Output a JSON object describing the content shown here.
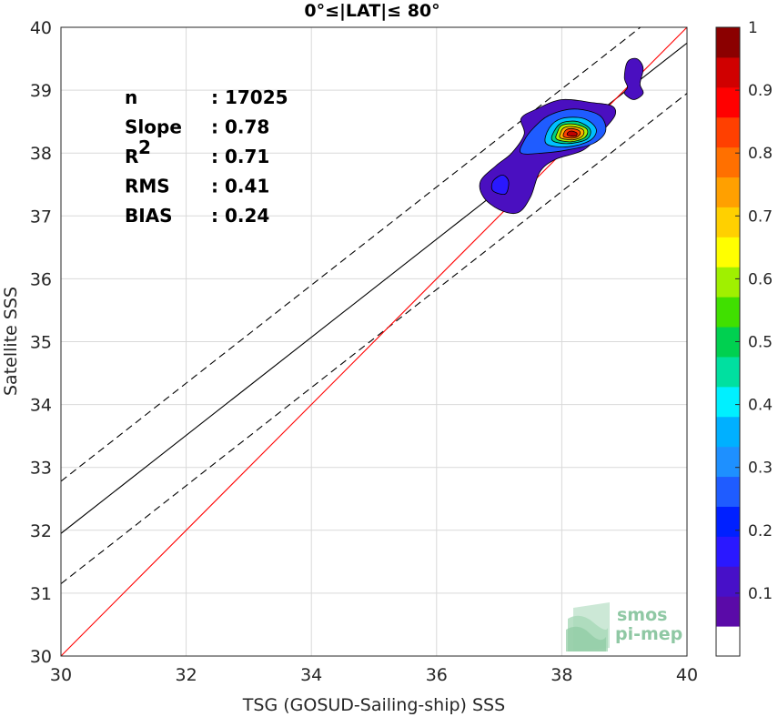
{
  "chart_data": {
    "type": "scatter",
    "title": "0°≤|LAT|≤ 80°",
    "xlabel": "TSG (GOSUD-Sailing-ship) SSS",
    "ylabel": "Satellite SSS",
    "xlim": [
      30,
      40
    ],
    "ylim": [
      30,
      40
    ],
    "xticks": [
      "30",
      "32",
      "34",
      "36",
      "38",
      "40"
    ],
    "yticks": [
      "30",
      "31",
      "32",
      "33",
      "34",
      "35",
      "36",
      "37",
      "38",
      "39",
      "40"
    ],
    "grid": true,
    "stats": [
      {
        "label": "n",
        "value": ": 17025"
      },
      {
        "label": "Slope",
        "value": ": 0.78"
      },
      {
        "label": "R",
        "sup": "2",
        "value": ": 0.71"
      },
      {
        "label": "RMS",
        "value": ": 0.41"
      },
      {
        "label": "BIAS",
        "value": ": 0.24"
      }
    ],
    "identity_line": {
      "from": [
        30,
        30
      ],
      "to": [
        40,
        40
      ],
      "color": "#ff0000"
    },
    "regression_line": {
      "from": [
        30,
        31.95
      ],
      "to": [
        40,
        39.75
      ],
      "color": "#000000"
    },
    "upper_bound_line": {
      "from": [
        30,
        32.78
      ],
      "to": [
        40,
        40.58
      ],
      "color": "#000000"
    },
    "lower_bound_line": {
      "from": [
        30,
        31.15
      ],
      "to": [
        40,
        38.95
      ],
      "color": "#000000"
    },
    "density_contours": [
      {
        "level": 0.05,
        "color": "#4a0fc0",
        "points": [
          [
            36.75,
            37.3
          ],
          [
            37.0,
            37.1
          ],
          [
            37.3,
            37.05
          ],
          [
            37.5,
            37.3
          ],
          [
            37.65,
            37.7
          ],
          [
            37.9,
            37.9
          ],
          [
            38.35,
            38.05
          ],
          [
            38.65,
            38.35
          ],
          [
            38.85,
            38.6
          ],
          [
            38.8,
            38.75
          ],
          [
            38.5,
            38.8
          ],
          [
            38.0,
            38.85
          ],
          [
            37.6,
            38.7
          ],
          [
            37.35,
            38.55
          ],
          [
            37.4,
            38.3
          ],
          [
            37.2,
            38.0
          ],
          [
            36.95,
            37.8
          ],
          [
            36.7,
            37.55
          ]
        ]
      },
      {
        "level": 0.05,
        "color": "#4a0fc0",
        "points": [
          [
            39.0,
            39.2
          ],
          [
            39.05,
            39.45
          ],
          [
            39.2,
            39.5
          ],
          [
            39.3,
            39.35
          ],
          [
            39.25,
            39.1
          ],
          [
            39.3,
            38.95
          ],
          [
            39.15,
            38.85
          ],
          [
            39.0,
            38.95
          ],
          [
            39.05,
            39.05
          ]
        ]
      },
      {
        "level": 0.1,
        "color": "#2a18ff",
        "points": [
          [
            36.9,
            37.4
          ],
          [
            37.1,
            37.35
          ],
          [
            37.15,
            37.55
          ],
          [
            37.05,
            37.65
          ],
          [
            36.9,
            37.55
          ]
        ]
      },
      {
        "level": 0.2,
        "color": "#1f5cff",
        "points": [
          [
            37.35,
            38.0
          ],
          [
            37.7,
            38.0
          ],
          [
            38.1,
            38.05
          ],
          [
            38.5,
            38.15
          ],
          [
            38.7,
            38.35
          ],
          [
            38.6,
            38.6
          ],
          [
            38.2,
            38.7
          ],
          [
            37.8,
            38.6
          ],
          [
            37.55,
            38.4
          ],
          [
            37.4,
            38.2
          ]
        ]
      },
      {
        "level": 0.4,
        "color": "#00c0ff",
        "points": [
          [
            37.75,
            38.15
          ],
          [
            38.1,
            38.1
          ],
          [
            38.45,
            38.2
          ],
          [
            38.55,
            38.38
          ],
          [
            38.35,
            38.55
          ],
          [
            38.0,
            38.55
          ],
          [
            37.8,
            38.4
          ]
        ]
      },
      {
        "level": 0.5,
        "color": "#00d080",
        "points": [
          [
            37.85,
            38.2
          ],
          [
            38.1,
            38.15
          ],
          [
            38.4,
            38.22
          ],
          [
            38.45,
            38.38
          ],
          [
            38.25,
            38.5
          ],
          [
            38.0,
            38.48
          ],
          [
            37.88,
            38.35
          ]
        ]
      },
      {
        "level": 0.6,
        "color": "#b0f000",
        "points": [
          [
            37.92,
            38.22
          ],
          [
            38.15,
            38.18
          ],
          [
            38.37,
            38.25
          ],
          [
            38.4,
            38.38
          ],
          [
            38.2,
            38.46
          ],
          [
            38.0,
            38.44
          ],
          [
            37.93,
            38.33
          ]
        ]
      },
      {
        "level": 0.7,
        "color": "#ffb000",
        "points": [
          [
            37.98,
            38.24
          ],
          [
            38.18,
            38.21
          ],
          [
            38.33,
            38.27
          ],
          [
            38.34,
            38.37
          ],
          [
            38.18,
            38.42
          ],
          [
            38.03,
            38.4
          ],
          [
            37.98,
            38.32
          ]
        ]
      },
      {
        "level": 0.85,
        "color": "#ff4000",
        "points": [
          [
            38.03,
            38.26
          ],
          [
            38.2,
            38.24
          ],
          [
            38.29,
            38.3
          ],
          [
            38.27,
            38.36
          ],
          [
            38.15,
            38.39
          ],
          [
            38.06,
            38.36
          ]
        ]
      },
      {
        "level": 1.0,
        "color": "#c00000",
        "points": [
          [
            38.1,
            38.28
          ],
          [
            38.22,
            38.27
          ],
          [
            38.24,
            38.32
          ],
          [
            38.15,
            38.35
          ],
          [
            38.09,
            38.32
          ]
        ]
      }
    ],
    "colorbar": {
      "ticks": [
        "0.1",
        "0.2",
        "0.3",
        "0.4",
        "0.5",
        "0.6",
        "0.7",
        "0.8",
        "0.9",
        "1"
      ],
      "tick_values": [
        0.1,
        0.2,
        0.3,
        0.4,
        0.5,
        0.6,
        0.7,
        0.8,
        0.9,
        1.0
      ],
      "range": [
        0,
        1
      ],
      "colors": [
        "#ffffff",
        "#5a0aa8",
        "#4710c8",
        "#2a18ff",
        "#0020ff",
        "#1f5cff",
        "#1e90ff",
        "#00b0ff",
        "#00f0ff",
        "#00e0a0",
        "#00d050",
        "#40e000",
        "#a0f000",
        "#ffff00",
        "#ffd000",
        "#ffa000",
        "#ff7000",
        "#ff4000",
        "#ff0000",
        "#d00000",
        "#8b0000"
      ]
    }
  },
  "watermark": {
    "line1": "smos",
    "line2": "pi-mep"
  }
}
